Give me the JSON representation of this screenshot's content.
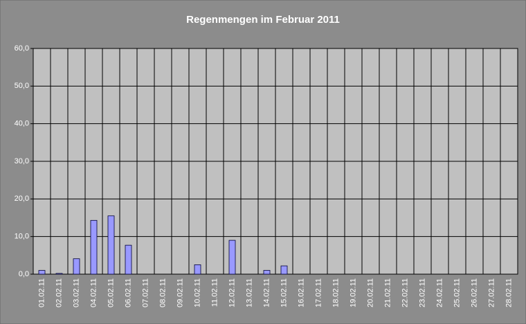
{
  "chart_data": {
    "type": "bar",
    "title": "Regenmengen im Februar 2011",
    "categories": [
      "01.02.11",
      "02.02.11",
      "03.02.11",
      "04.02.11",
      "05.02.11",
      "06.02.11",
      "07.02.11",
      "08.02.11",
      "09.02.11",
      "10.02.11",
      "11.02.11",
      "12.02.11",
      "13.02.11",
      "14.02.11",
      "15.02.11",
      "16.02.11",
      "17.02.11",
      "18.02.11",
      "19.02.11",
      "20.02.11",
      "21.02.11",
      "22.02.11",
      "23.02.11",
      "24.02.11",
      "25.02.11",
      "26.02.11",
      "27.02.11",
      "28.02.11"
    ],
    "values": [
      1.0,
      0.2,
      4.1,
      14.3,
      15.5,
      7.7,
      0,
      0,
      0,
      2.5,
      0,
      9.0,
      0,
      1.0,
      2.2,
      0,
      0,
      0,
      0,
      0,
      0,
      0,
      0,
      0,
      0,
      0,
      0,
      0
    ],
    "color": "#9999ff",
    "ylim": [
      0,
      60
    ],
    "yticks": [
      {
        "value": 0,
        "label": "0,0"
      },
      {
        "value": 10,
        "label": "10,0"
      },
      {
        "value": 20,
        "label": "20,0"
      },
      {
        "value": 30,
        "label": "30,0"
      },
      {
        "value": 40,
        "label": "40,0"
      },
      {
        "value": 50,
        "label": "50,0"
      },
      {
        "value": 60,
        "label": "60,0"
      }
    ],
    "grid": true
  }
}
